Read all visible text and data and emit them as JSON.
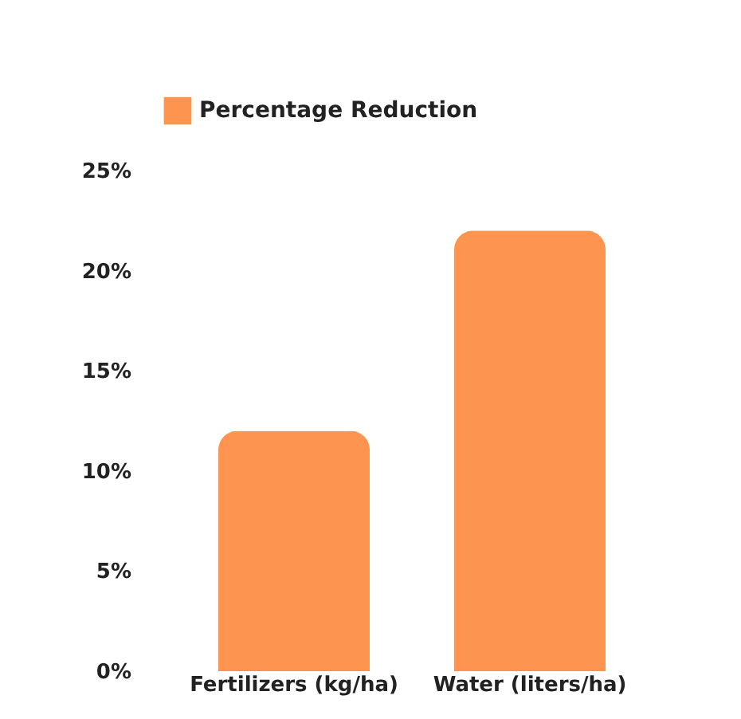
{
  "chart_data": {
    "type": "bar",
    "categories": [
      "Fertilizers (kg/ha)",
      "Water (liters/ha)"
    ],
    "series": [
      {
        "name": "Percentage Reduction",
        "color": "#fd944f",
        "values": [
          12,
          22
        ]
      }
    ],
    "ylim": [
      0,
      25
    ],
    "yticks": [
      {
        "value": 0,
        "label": "0%"
      },
      {
        "value": 5,
        "label": "5%"
      },
      {
        "value": 10,
        "label": "10%"
      },
      {
        "value": 15,
        "label": "15%"
      },
      {
        "value": 20,
        "label": "20%"
      },
      {
        "value": 25,
        "label": "25%"
      }
    ],
    "grid": false,
    "legend": "top"
  }
}
